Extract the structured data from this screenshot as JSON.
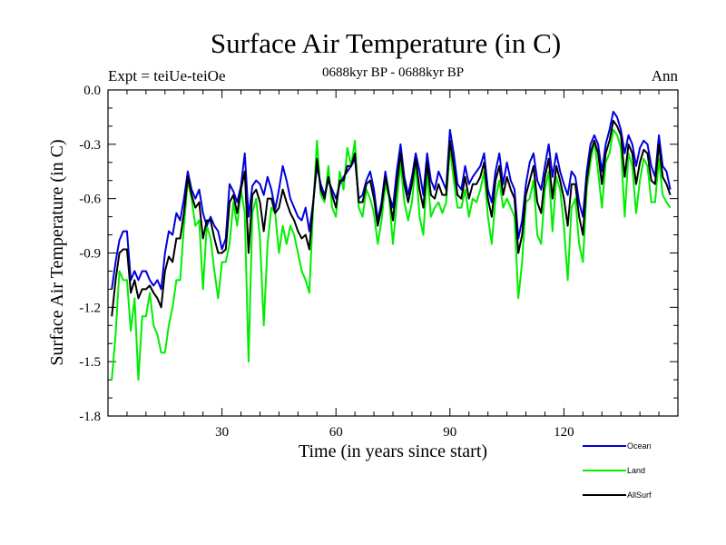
{
  "chart_data": {
    "type": "line",
    "title": "Surface Air Temperature (in C)",
    "subtitle": "0688kyr BP - 0688kyr BP",
    "left_label": "Expt = teiUe-teiOe",
    "right_label": "Ann",
    "xlabel": "Time (in years since start)",
    "ylabel": "Surface Air Temperature (in C)",
    "xlim": [
      0,
      150
    ],
    "ylim": [
      -1.8,
      0.0
    ],
    "xticks": [
      30,
      60,
      90,
      120
    ],
    "xtick_labels": [
      "30",
      "60",
      "90",
      "120"
    ],
    "yticks": [
      0.0,
      -0.3,
      -0.6,
      -0.9,
      -1.2,
      -1.5,
      -1.8
    ],
    "ytick_labels": [
      "0.0",
      "-0.3",
      "-0.6",
      "-0.9",
      "-1.2",
      "-1.5",
      "-1.8"
    ],
    "series": [
      {
        "name": "Ocean",
        "color": "#0000dd",
        "values": [
          -1.1,
          -0.95,
          -0.83,
          -0.78,
          -0.78,
          -1.05,
          -1.0,
          -1.05,
          -1.0,
          -1.0,
          -1.05,
          -1.08,
          -1.05,
          -1.1,
          -0.9,
          -0.78,
          -0.8,
          -0.68,
          -0.72,
          -0.6,
          -0.45,
          -0.55,
          -0.6,
          -0.55,
          -0.68,
          -0.75,
          -0.7,
          -0.75,
          -0.78,
          -0.88,
          -0.82,
          -0.52,
          -0.56,
          -0.62,
          -0.53,
          -0.35,
          -0.7,
          -0.53,
          -0.5,
          -0.52,
          -0.58,
          -0.48,
          -0.55,
          -0.66,
          -0.55,
          -0.42,
          -0.5,
          -0.6,
          -0.65,
          -0.7,
          -0.72,
          -0.65,
          -0.78,
          -0.62,
          -0.42,
          -0.52,
          -0.58,
          -0.5,
          -0.55,
          -0.6,
          -0.52,
          -0.48,
          -0.45,
          -0.42,
          -0.38,
          -0.6,
          -0.58,
          -0.5,
          -0.45,
          -0.55,
          -0.72,
          -0.62,
          -0.45,
          -0.58,
          -0.65,
          -0.45,
          -0.3,
          -0.48,
          -0.58,
          -0.48,
          -0.35,
          -0.45,
          -0.58,
          -0.35,
          -0.5,
          -0.55,
          -0.45,
          -0.5,
          -0.55,
          -0.22,
          -0.35,
          -0.52,
          -0.55,
          -0.42,
          -0.52,
          -0.48,
          -0.45,
          -0.42,
          -0.35,
          -0.55,
          -0.62,
          -0.45,
          -0.35,
          -0.52,
          -0.4,
          -0.5,
          -0.55,
          -0.82,
          -0.72,
          -0.52,
          -0.4,
          -0.35,
          -0.5,
          -0.55,
          -0.42,
          -0.3,
          -0.48,
          -0.35,
          -0.45,
          -0.52,
          -0.58,
          -0.45,
          -0.48,
          -0.62,
          -0.7,
          -0.45,
          -0.3,
          -0.25,
          -0.3,
          -0.45,
          -0.3,
          -0.22,
          -0.12,
          -0.15,
          -0.22,
          -0.35,
          -0.25,
          -0.3,
          -0.42,
          -0.32,
          -0.28,
          -0.3,
          -0.42,
          -0.48,
          -0.25,
          -0.42,
          -0.45,
          -0.55
        ],
        "data_name": "ocean-series-line"
      },
      {
        "name": "Land",
        "color": "#00ee00",
        "values": [
          -1.6,
          -1.35,
          -1.0,
          -1.05,
          -1.05,
          -1.33,
          -1.15,
          -1.6,
          -1.25,
          -1.25,
          -1.12,
          -1.3,
          -1.35,
          -1.45,
          -1.45,
          -1.3,
          -1.2,
          -1.05,
          -1.05,
          -0.75,
          -0.5,
          -0.6,
          -0.75,
          -0.72,
          -1.1,
          -0.75,
          -0.82,
          -1.0,
          -1.15,
          -0.95,
          -0.95,
          -0.85,
          -0.62,
          -0.75,
          -0.55,
          -0.68,
          -1.5,
          -0.68,
          -0.6,
          -0.82,
          -1.3,
          -0.85,
          -0.65,
          -0.68,
          -0.9,
          -0.75,
          -0.85,
          -0.75,
          -0.8,
          -0.9,
          -1.0,
          -1.05,
          -1.12,
          -0.65,
          -0.28,
          -0.58,
          -0.62,
          -0.42,
          -0.65,
          -0.7,
          -0.45,
          -0.55,
          -0.32,
          -0.42,
          -0.28,
          -0.65,
          -0.7,
          -0.55,
          -0.6,
          -0.68,
          -0.85,
          -0.72,
          -0.52,
          -0.6,
          -0.85,
          -0.62,
          -0.4,
          -0.62,
          -0.72,
          -0.62,
          -0.4,
          -0.7,
          -0.8,
          -0.45,
          -0.7,
          -0.65,
          -0.62,
          -0.68,
          -0.62,
          -0.32,
          -0.5,
          -0.65,
          -0.65,
          -0.55,
          -0.7,
          -0.6,
          -0.62,
          -0.55,
          -0.45,
          -0.7,
          -0.85,
          -0.6,
          -0.5,
          -0.65,
          -0.6,
          -0.65,
          -0.7,
          -1.15,
          -0.95,
          -0.62,
          -0.6,
          -0.5,
          -0.8,
          -0.85,
          -0.55,
          -0.45,
          -0.78,
          -0.48,
          -0.55,
          -0.75,
          -1.05,
          -0.65,
          -0.6,
          -0.85,
          -0.95,
          -0.55,
          -0.4,
          -0.28,
          -0.45,
          -0.65,
          -0.4,
          -0.35,
          -0.22,
          -0.25,
          -0.32,
          -0.7,
          -0.35,
          -0.42,
          -0.68,
          -0.5,
          -0.38,
          -0.42,
          -0.62,
          -0.62,
          -0.38,
          -0.58,
          -0.62,
          -0.65
        ],
        "data_name": "land-series-line"
      },
      {
        "name": "AllSurf",
        "color": "#000000",
        "values": [
          -1.25,
          -1.05,
          -0.9,
          -0.88,
          -0.88,
          -1.12,
          -1.05,
          -1.15,
          -1.1,
          -1.1,
          -1.08,
          -1.12,
          -1.15,
          -1.2,
          -1.0,
          -0.92,
          -0.95,
          -0.82,
          -0.82,
          -0.68,
          -0.48,
          -0.58,
          -0.65,
          -0.62,
          -0.82,
          -0.72,
          -0.72,
          -0.82,
          -0.9,
          -0.9,
          -0.88,
          -0.62,
          -0.58,
          -0.68,
          -0.55,
          -0.45,
          -0.9,
          -0.58,
          -0.55,
          -0.62,
          -0.78,
          -0.6,
          -0.6,
          -0.68,
          -0.65,
          -0.55,
          -0.62,
          -0.68,
          -0.72,
          -0.78,
          -0.82,
          -0.8,
          -0.88,
          -0.63,
          -0.38,
          -0.55,
          -0.6,
          -0.48,
          -0.58,
          -0.65,
          -0.5,
          -0.5,
          -0.42,
          -0.42,
          -0.35,
          -0.62,
          -0.62,
          -0.52,
          -0.5,
          -0.6,
          -0.75,
          -0.65,
          -0.48,
          -0.58,
          -0.72,
          -0.52,
          -0.35,
          -0.52,
          -0.62,
          -0.52,
          -0.38,
          -0.55,
          -0.65,
          -0.4,
          -0.58,
          -0.6,
          -0.52,
          -0.58,
          -0.58,
          -0.28,
          -0.42,
          -0.58,
          -0.6,
          -0.48,
          -0.6,
          -0.52,
          -0.52,
          -0.48,
          -0.4,
          -0.6,
          -0.7,
          -0.5,
          -0.42,
          -0.58,
          -0.48,
          -0.55,
          -0.6,
          -0.9,
          -0.8,
          -0.58,
          -0.5,
          -0.42,
          -0.62,
          -0.68,
          -0.48,
          -0.38,
          -0.6,
          -0.42,
          -0.5,
          -0.6,
          -0.75,
          -0.52,
          -0.52,
          -0.7,
          -0.8,
          -0.5,
          -0.35,
          -0.28,
          -0.35,
          -0.52,
          -0.35,
          -0.28,
          -0.17,
          -0.2,
          -0.25,
          -0.48,
          -0.3,
          -0.35,
          -0.52,
          -0.4,
          -0.33,
          -0.35,
          -0.5,
          -0.52,
          -0.3,
          -0.48,
          -0.52,
          -0.58
        ],
        "data_name": "allsurf-series-line"
      }
    ],
    "legend_position": "bottom-right"
  }
}
